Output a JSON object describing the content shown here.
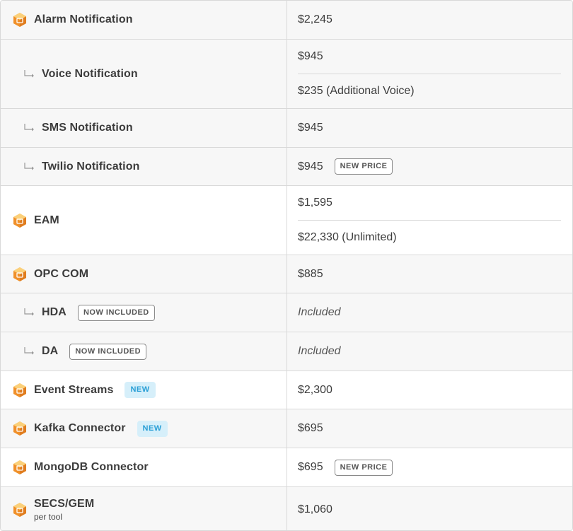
{
  "rows": [
    {
      "name": "Alarm Notification",
      "price": "$2,245"
    },
    {
      "name": "Voice Notification",
      "price1": "$945",
      "price2": "$235 (Additional Voice)"
    },
    {
      "name": "SMS Notification",
      "price": "$945"
    },
    {
      "name": "Twilio Notification",
      "price": "$945",
      "badge": "NEW PRICE"
    },
    {
      "name": "EAM",
      "price1": "$1,595",
      "price2": "$22,330 (Unlimited)"
    },
    {
      "name": "OPC COM",
      "price": "$885"
    },
    {
      "name": "HDA",
      "badge": "NOW INCLUDED",
      "price": "Included"
    },
    {
      "name": "DA",
      "badge": "NOW INCLUDED",
      "price": "Included"
    },
    {
      "name": "Event Streams",
      "badge": "NEW",
      "price": "$2,300"
    },
    {
      "name": "Kafka Connector",
      "badge": "NEW",
      "price": "$695"
    },
    {
      "name": "MongoDB Connector",
      "price": "$695",
      "badge": "NEW PRICE"
    },
    {
      "name": "SECS/GEM",
      "note": "per tool",
      "price": "$1,060"
    }
  ],
  "colors": {
    "icon_orange": "#f0902a",
    "badge_blue_bg": "#d6effa",
    "badge_blue_text": "#2a9fd6"
  },
  "icons": {
    "module": "module-box-icon",
    "sub": "sub-arrow-icon"
  }
}
